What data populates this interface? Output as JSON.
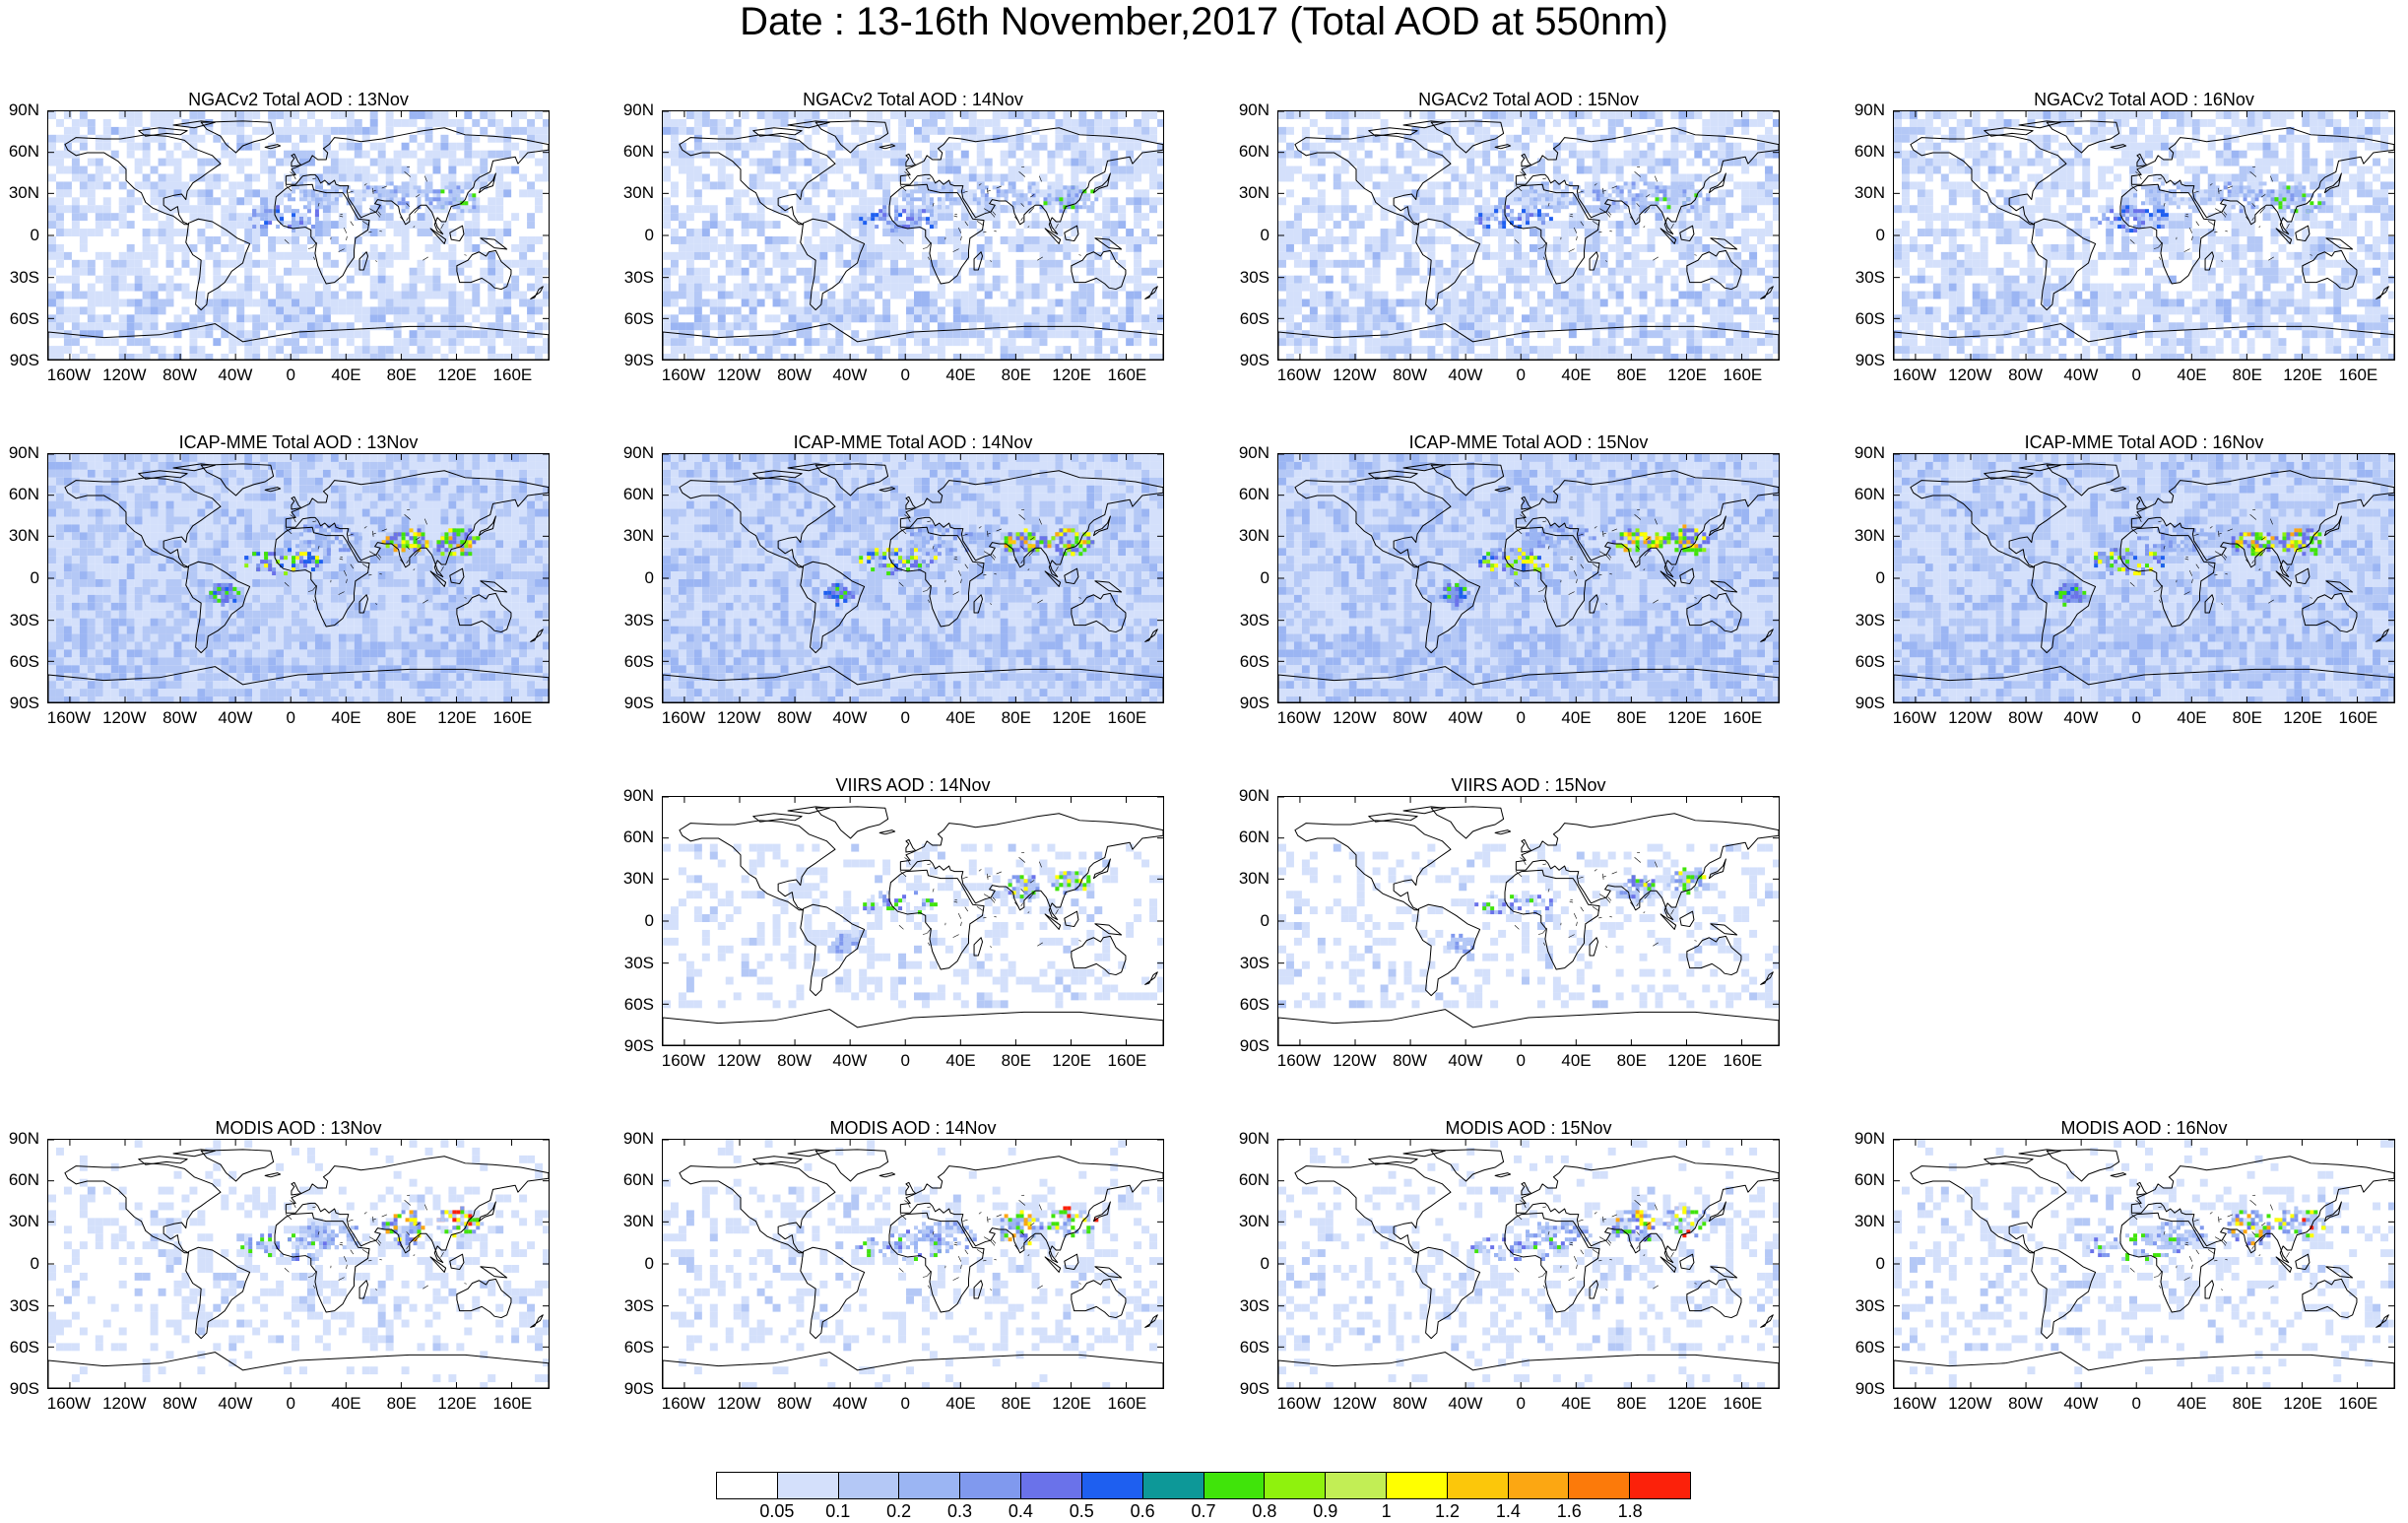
{
  "title": "Date : 13-16th November,2017 (Total AOD at 550nm)",
  "lat_labels": [
    "90N",
    "60N",
    "30N",
    "0",
    "30S",
    "60S",
    "90S"
  ],
  "lon_labels": [
    "160W",
    "120W",
    "80W",
    "40W",
    "0",
    "40E",
    "80E",
    "120E",
    "160E"
  ],
  "panels": [
    {
      "title": "NGACv2 Total AOD : 13Nov",
      "product": "ngac",
      "row": 0,
      "col": 0
    },
    {
      "title": "NGACv2 Total AOD : 14Nov",
      "product": "ngac",
      "row": 0,
      "col": 1
    },
    {
      "title": "NGACv2 Total AOD : 15Nov",
      "product": "ngac",
      "row": 0,
      "col": 2
    },
    {
      "title": "NGACv2 Total AOD : 16Nov",
      "product": "ngac",
      "row": 0,
      "col": 3
    },
    {
      "title": "ICAP-MME Total AOD : 13Nov",
      "product": "icap",
      "row": 1,
      "col": 0
    },
    {
      "title": "ICAP-MME Total AOD : 14Nov",
      "product": "icap",
      "row": 1,
      "col": 1
    },
    {
      "title": "ICAP-MME Total AOD : 15Nov",
      "product": "icap",
      "row": 1,
      "col": 2
    },
    {
      "title": "ICAP-MME Total AOD : 16Nov",
      "product": "icap",
      "row": 1,
      "col": 3
    },
    {
      "title": "VIIRS AOD : 14Nov",
      "product": "viirs",
      "row": 2,
      "col": 1
    },
    {
      "title": "VIIRS AOD : 15Nov",
      "product": "viirs",
      "row": 2,
      "col": 2
    },
    {
      "title": "MODIS AOD : 13Nov",
      "product": "modis",
      "row": 3,
      "col": 0
    },
    {
      "title": "MODIS AOD : 14Nov",
      "product": "modis",
      "row": 3,
      "col": 1
    },
    {
      "title": "MODIS AOD : 15Nov",
      "product": "modis",
      "row": 3,
      "col": 2
    },
    {
      "title": "MODIS AOD : 16Nov",
      "product": "modis",
      "row": 3,
      "col": 3
    }
  ],
  "colorbar": {
    "colors": [
      "#ffffff",
      "#d4e0fb",
      "#b4c8f6",
      "#9bb5f3",
      "#8099ee",
      "#6a72ea",
      "#1e5ff0",
      "#0d9898",
      "#40e40a",
      "#8ff20d",
      "#c2ee55",
      "#ffff00",
      "#fcc70a",
      "#fca712",
      "#fc7a0a",
      "#fc210a"
    ],
    "labels": [
      "0.05",
      "0.1",
      "0.2",
      "0.3",
      "0.4",
      "0.5",
      "0.6",
      "0.7",
      "0.8",
      "0.9",
      "1",
      "1.2",
      "1.4",
      "1.6",
      "1.8"
    ]
  }
}
